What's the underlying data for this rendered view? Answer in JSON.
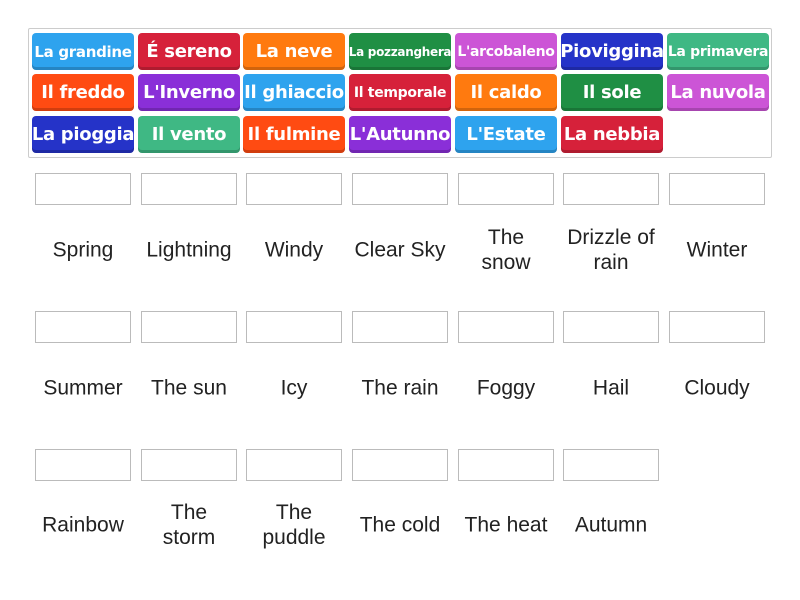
{
  "tiles": [
    {
      "text": "La grandine",
      "color": "#2ea3ee",
      "size": 15
    },
    {
      "text": "É sereno",
      "color": "#d6213a",
      "size": 18
    },
    {
      "text": "La neve",
      "color": "#ff7a0f",
      "size": 18
    },
    {
      "text": "La pozzanghera",
      "color": "#1f8f44",
      "size": 12
    },
    {
      "text": "L'arcobaleno",
      "color": "#cc55d6",
      "size": 14
    },
    {
      "text": "Pioviggina",
      "color": "#2533c8",
      "size": 18
    },
    {
      "text": "La primavera",
      "color": "#3fb884",
      "size": 14
    },
    {
      "text": "Il freddo",
      "color": "#ff4b12",
      "size": 18
    },
    {
      "text": "L'Inverno",
      "color": "#8a2fd8",
      "size": 18
    },
    {
      "text": "Il ghiaccio",
      "color": "#2ea3ee",
      "size": 18
    },
    {
      "text": "Il temporale",
      "color": "#d6213a",
      "size": 14
    },
    {
      "text": "Il caldo",
      "color": "#ff7a0f",
      "size": 18
    },
    {
      "text": "Il sole",
      "color": "#1f8f44",
      "size": 18
    },
    {
      "text": "La nuvola",
      "color": "#cc55d6",
      "size": 18
    },
    {
      "text": "La pioggia",
      "color": "#2533c8",
      "size": 18
    },
    {
      "text": "Il vento",
      "color": "#3fb884",
      "size": 18
    },
    {
      "text": "Il fulmine",
      "color": "#ff4b12",
      "size": 18
    },
    {
      "text": "L'Autunno",
      "color": "#8a2fd8",
      "size": 18
    },
    {
      "text": "L'Estate",
      "color": "#2ea3ee",
      "size": 18
    },
    {
      "text": "La nebbia",
      "color": "#d6213a",
      "size": 18
    }
  ],
  "targets": [
    "Spring",
    "Lightning",
    "Windy",
    "Clear Sky",
    "The snow",
    "Drizzle of rain",
    "Winter",
    "Summer",
    "The sun",
    "Icy",
    "The rain",
    "Foggy",
    "Hail",
    "Cloudy",
    "Rainbow",
    "The storm",
    "The puddle",
    "The cold",
    "The heat",
    "Autumn"
  ]
}
